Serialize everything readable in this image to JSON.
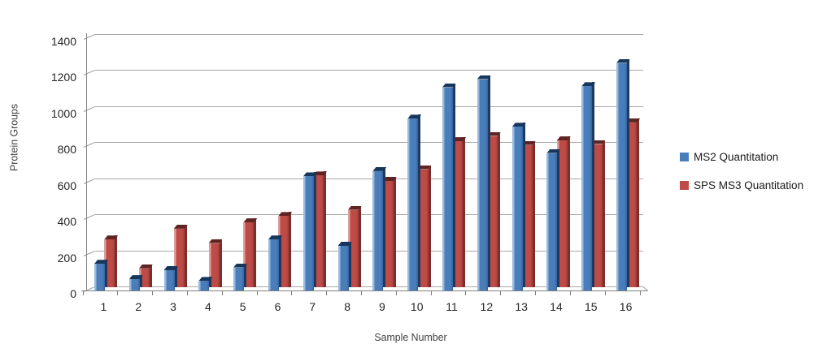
{
  "chart_data": {
    "type": "bar",
    "style": "3d-clustered-column",
    "title": "",
    "xlabel": "Sample Number",
    "ylabel": "Protein Groups",
    "categories": [
      "1",
      "2",
      "3",
      "4",
      "5",
      "6",
      "7",
      "8",
      "9",
      "10",
      "11",
      "12",
      "13",
      "14",
      "15",
      "16"
    ],
    "series": [
      {
        "name": "MS2 Quantitation",
        "color": "#4a7ebb",
        "color_light": "#9ab9de",
        "color_dark": "#35619c",
        "color_side": "#1e3a60",
        "color_cap": "#16365c",
        "values": [
          125,
          40,
          90,
          30,
          105,
          260,
          610,
          225,
          640,
          930,
          1105,
          1150,
          885,
          740,
          1110,
          1240
        ]
      },
      {
        "name": "SPS MS3 Quantitation",
        "color": "#bf4b47",
        "color_light": "#dca09e",
        "color_dark": "#9c3d3a",
        "color_side": "#7c2e2c",
        "color_cap": "#5f2321",
        "values": [
          260,
          100,
          320,
          240,
          355,
          390,
          615,
          425,
          585,
          650,
          805,
          835,
          785,
          810,
          790,
          910
        ]
      }
    ],
    "ylim": [
      0,
      1400
    ],
    "yticks": [
      0,
      200,
      400,
      600,
      800,
      1000,
      1200,
      1400
    ],
    "grid": true,
    "legend_position": "right"
  }
}
